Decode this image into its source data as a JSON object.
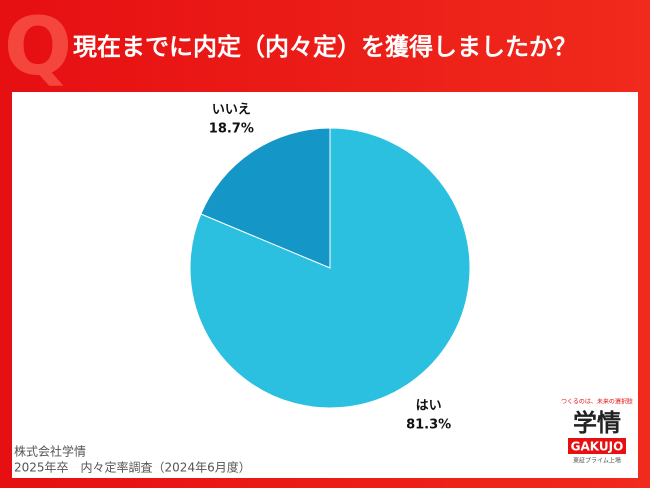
{
  "chart_data": {
    "type": "pie",
    "title": "現在までに内定（内々定）を獲得しましたか？",
    "categories": [
      "いいえ",
      "はい"
    ],
    "values": [
      18.7,
      81.3
    ],
    "value_labels": [
      "18.7%",
      "81.3%"
    ],
    "colors": [
      "#1496c6",
      "#2bc0e0"
    ]
  },
  "header": {
    "mark": "Q"
  },
  "footer": {
    "company": "株式会社学情",
    "survey": "2025年卒　内々定率調査（2024年6月度）"
  },
  "logo": {
    "tagline": "つくるのは、未来の選択肢",
    "name": "学情",
    "roman": "GAKUJO",
    "listing": "東証プライム上場"
  }
}
